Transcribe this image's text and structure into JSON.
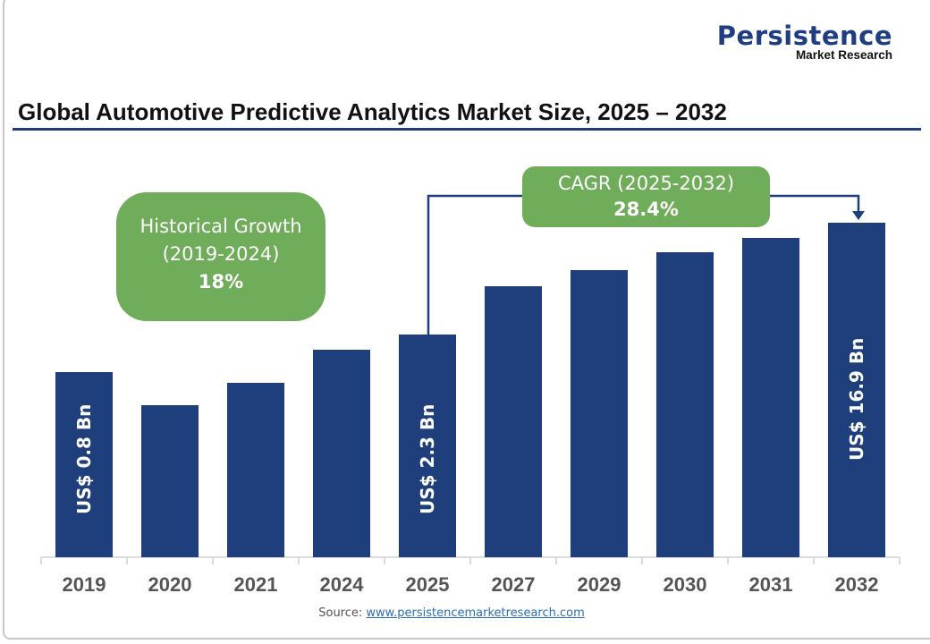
{
  "brand": {
    "name": "Persistence",
    "sub": "Market Research"
  },
  "chart_data": {
    "type": "bar",
    "title": "Global Automotive Predictive Analytics Market Size, 2025 – 2032",
    "categories": [
      "2019",
      "2020",
      "2021",
      "2024",
      "2025",
      "2027",
      "2029",
      "2030",
      "2031",
      "2032"
    ],
    "values": [
      0.8,
      null,
      null,
      null,
      2.3,
      null,
      null,
      null,
      null,
      16.9
    ],
    "data_labels": [
      "US$ 0.8 Bn",
      "",
      "",
      "",
      "US$ 2.3 Bn",
      "",
      "",
      "",
      "",
      "US$ 16.9 Bn"
    ],
    "bar_color": "#1f3e7c",
    "grid": false,
    "annotations": {
      "historical": {
        "line1": "Historical Growth",
        "line2": "(2019-2024)",
        "value": "18%"
      },
      "cagr": {
        "line1": "CAGR (2025-2032)",
        "value": "28.4%"
      }
    },
    "annotation_color": "#70ad5a"
  },
  "source": {
    "label": "Source:",
    "link": "www.persistencemarketresearch.com"
  }
}
